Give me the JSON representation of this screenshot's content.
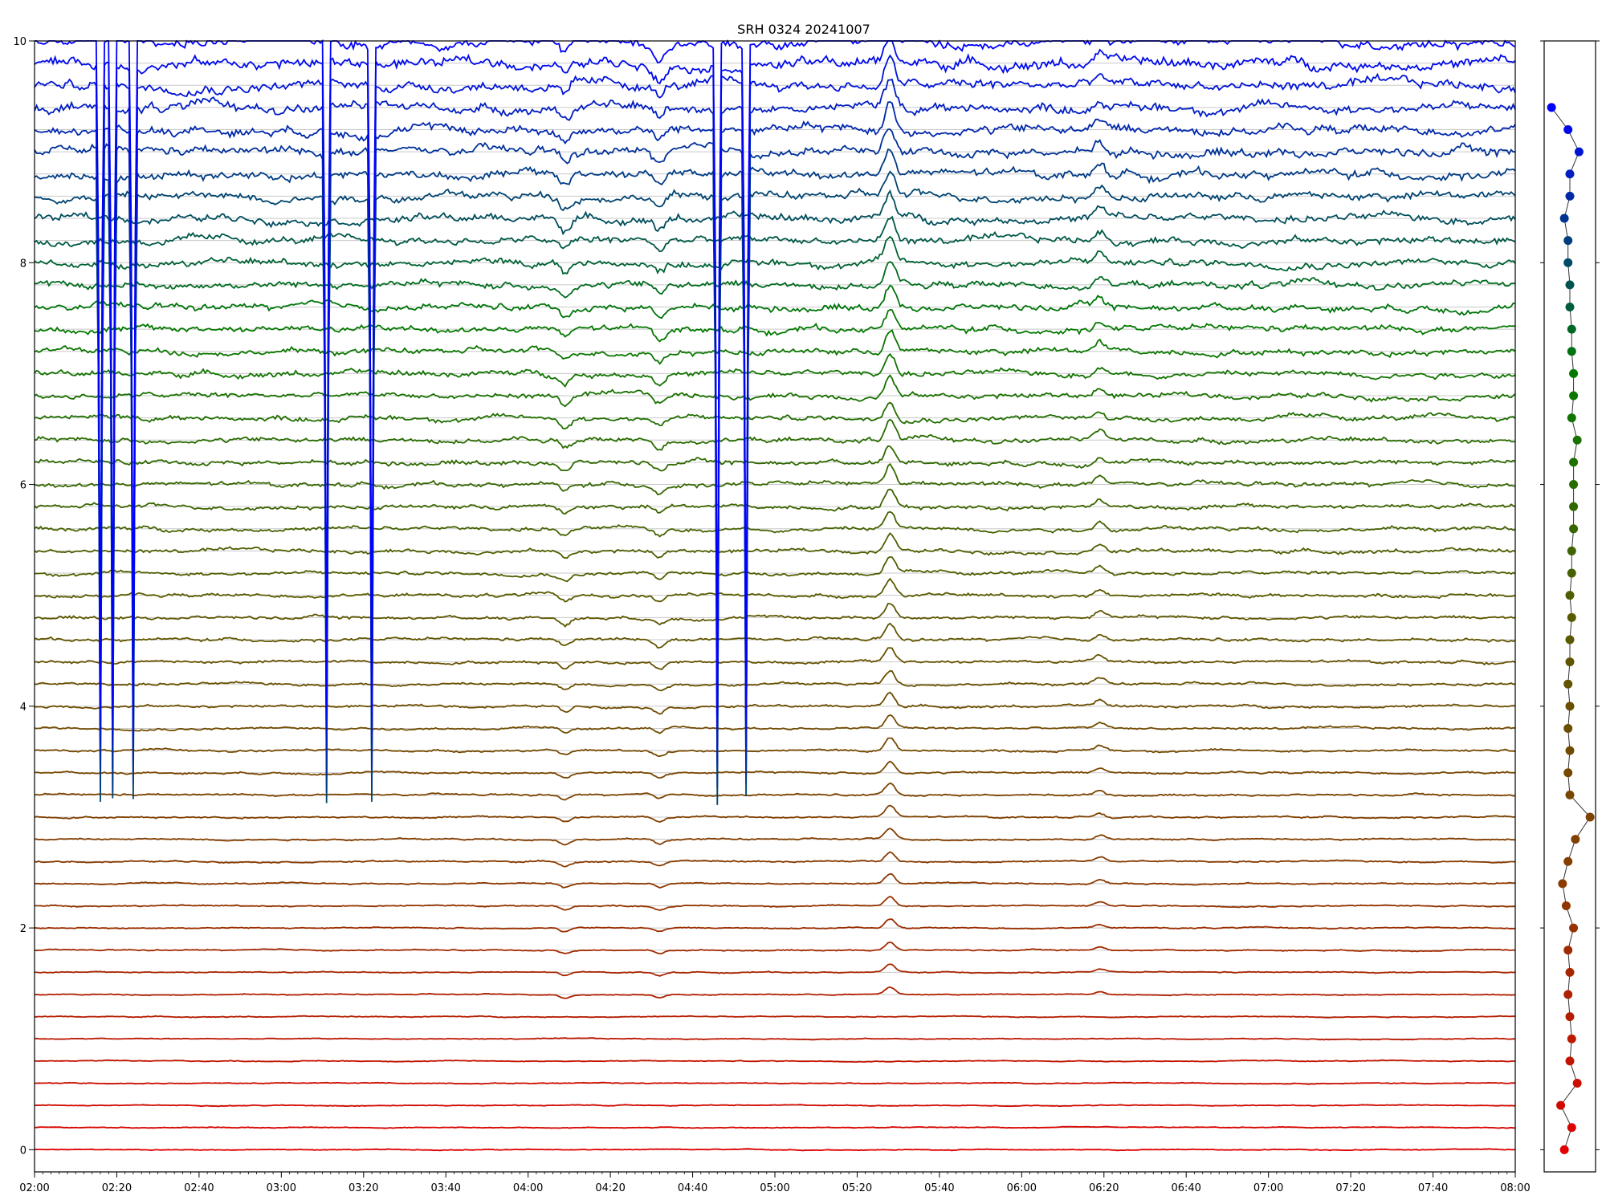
{
  "chart_data": [
    {
      "type": "line",
      "title": "SRH 0324 20241007",
      "xlabel": "",
      "ylabel": "",
      "x_range": [
        "02:00",
        "08:00"
      ],
      "ylim": [
        -0.2,
        10
      ],
      "x_ticks": [
        "02:00",
        "02:20",
        "02:40",
        "03:00",
        "03:20",
        "03:40",
        "04:00",
        "04:20",
        "04:40",
        "05:00",
        "05:20",
        "05:40",
        "06:00",
        "06:20",
        "06:40",
        "07:00",
        "07:20",
        "07:40",
        "08:00"
      ],
      "y_ticks": [
        "0",
        "2",
        "4",
        "6",
        "8",
        "10"
      ],
      "grid": "horizontal at each channel baseline",
      "legend": "none",
      "n_channels": 51,
      "channel_spacing": 0.2,
      "channel_baseline_first": 0.0,
      "color_gradient": [
        "#e00000",
        "#8a3a00",
        "#5a5a00",
        "#007a00",
        "#0000ff"
      ],
      "common_spike_times": [
        "05:28",
        "06:19",
        "04:32",
        "04:09"
      ],
      "noisy_channel_offsets": [
        1.6,
        0.8,
        0.6
      ],
      "strong_dropout_times": [
        "02:16",
        "02:19",
        "02:24",
        "03:11",
        "03:22",
        "04:46",
        "04:53"
      ]
    },
    {
      "type": "scatter",
      "title": "",
      "xlabel": "",
      "ylabel": "",
      "ylim": [
        -0.2,
        10
      ],
      "points_y": [
        0.0,
        0.2,
        0.4,
        0.6,
        0.8,
        1.0,
        1.2,
        1.4,
        1.6,
        1.8,
        2.0,
        2.2,
        2.4,
        2.6,
        2.8,
        3.0,
        3.2,
        3.4,
        3.6,
        3.8,
        4.0,
        4.2,
        4.4,
        4.6,
        4.8,
        5.0,
        5.2,
        5.4,
        5.6,
        5.8,
        6.0,
        6.2,
        6.4,
        6.6,
        6.8,
        7.0,
        7.2,
        7.4,
        7.6,
        7.8,
        8.0,
        8.2,
        8.4,
        8.6,
        8.8,
        9.0,
        9.2,
        9.4
      ],
      "points_x": [
        -0.3,
        0.1,
        -0.5,
        0.4,
        0.0,
        0.1,
        0.0,
        -0.1,
        0.0,
        -0.1,
        0.2,
        -0.2,
        -0.4,
        -0.1,
        0.3,
        1.1,
        0.0,
        -0.1,
        0.0,
        -0.1,
        0.0,
        -0.1,
        0.0,
        0.0,
        0.1,
        0.0,
        0.1,
        0.1,
        0.2,
        0.2,
        0.2,
        0.2,
        0.4,
        0.1,
        0.2,
        0.2,
        0.1,
        0.1,
        0.0,
        0.0,
        -0.1,
        -0.1,
        -0.3,
        0.0,
        0.0,
        0.5,
        -0.1,
        -1.0
      ],
      "xlim": [
        -1.4,
        1.4
      ],
      "x_ticks": [],
      "y_ticks": []
    }
  ]
}
